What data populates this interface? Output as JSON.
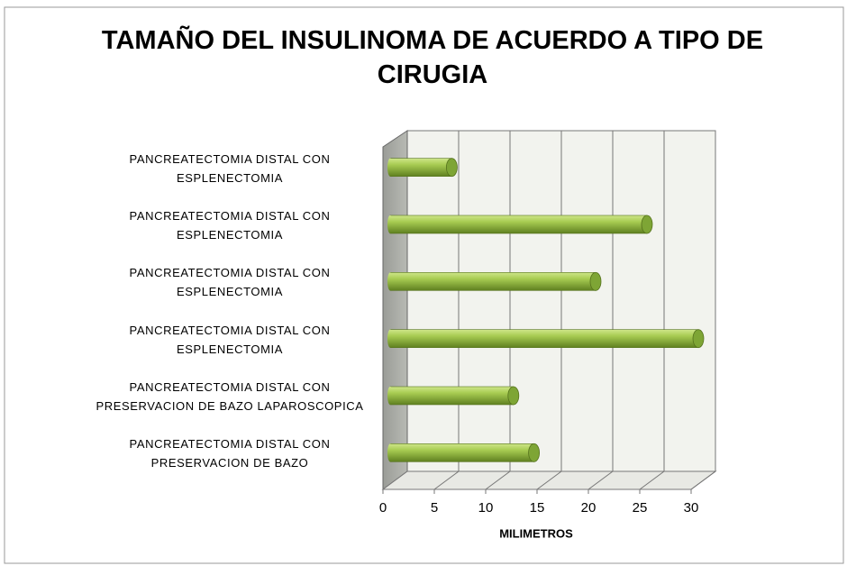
{
  "chart_data": {
    "type": "bar",
    "orientation": "horizontal",
    "title": "TAMAÑO DEL INSULINOMA DE ACUERDO A TIPO DE CIRUGIA",
    "categories": [
      "PANCREATECTOMIA DISTAL CON ESPLENECTOMIA",
      "PANCREATECTOMIA DISTAL CON ESPLENECTOMIA",
      "PANCREATECTOMIA DISTAL CON ESPLENECTOMIA",
      "PANCREATECTOMIA DISTAL CON ESPLENECTOMIA",
      "PANCREATECTOMIA DISTAL CON PRESERVACION DE BAZO LAPAROSCOPICA",
      "PANCREATECTOMIA DISTAL CON PRESERVACION DE BAZO"
    ],
    "values": [
      6,
      25,
      20,
      30,
      12,
      14
    ],
    "color": "#8db33a",
    "x_label": "MILIMETROS",
    "xlim": [
      0,
      30
    ],
    "xticks": [
      0,
      5,
      10,
      15,
      20,
      25,
      30
    ],
    "grid": true
  }
}
